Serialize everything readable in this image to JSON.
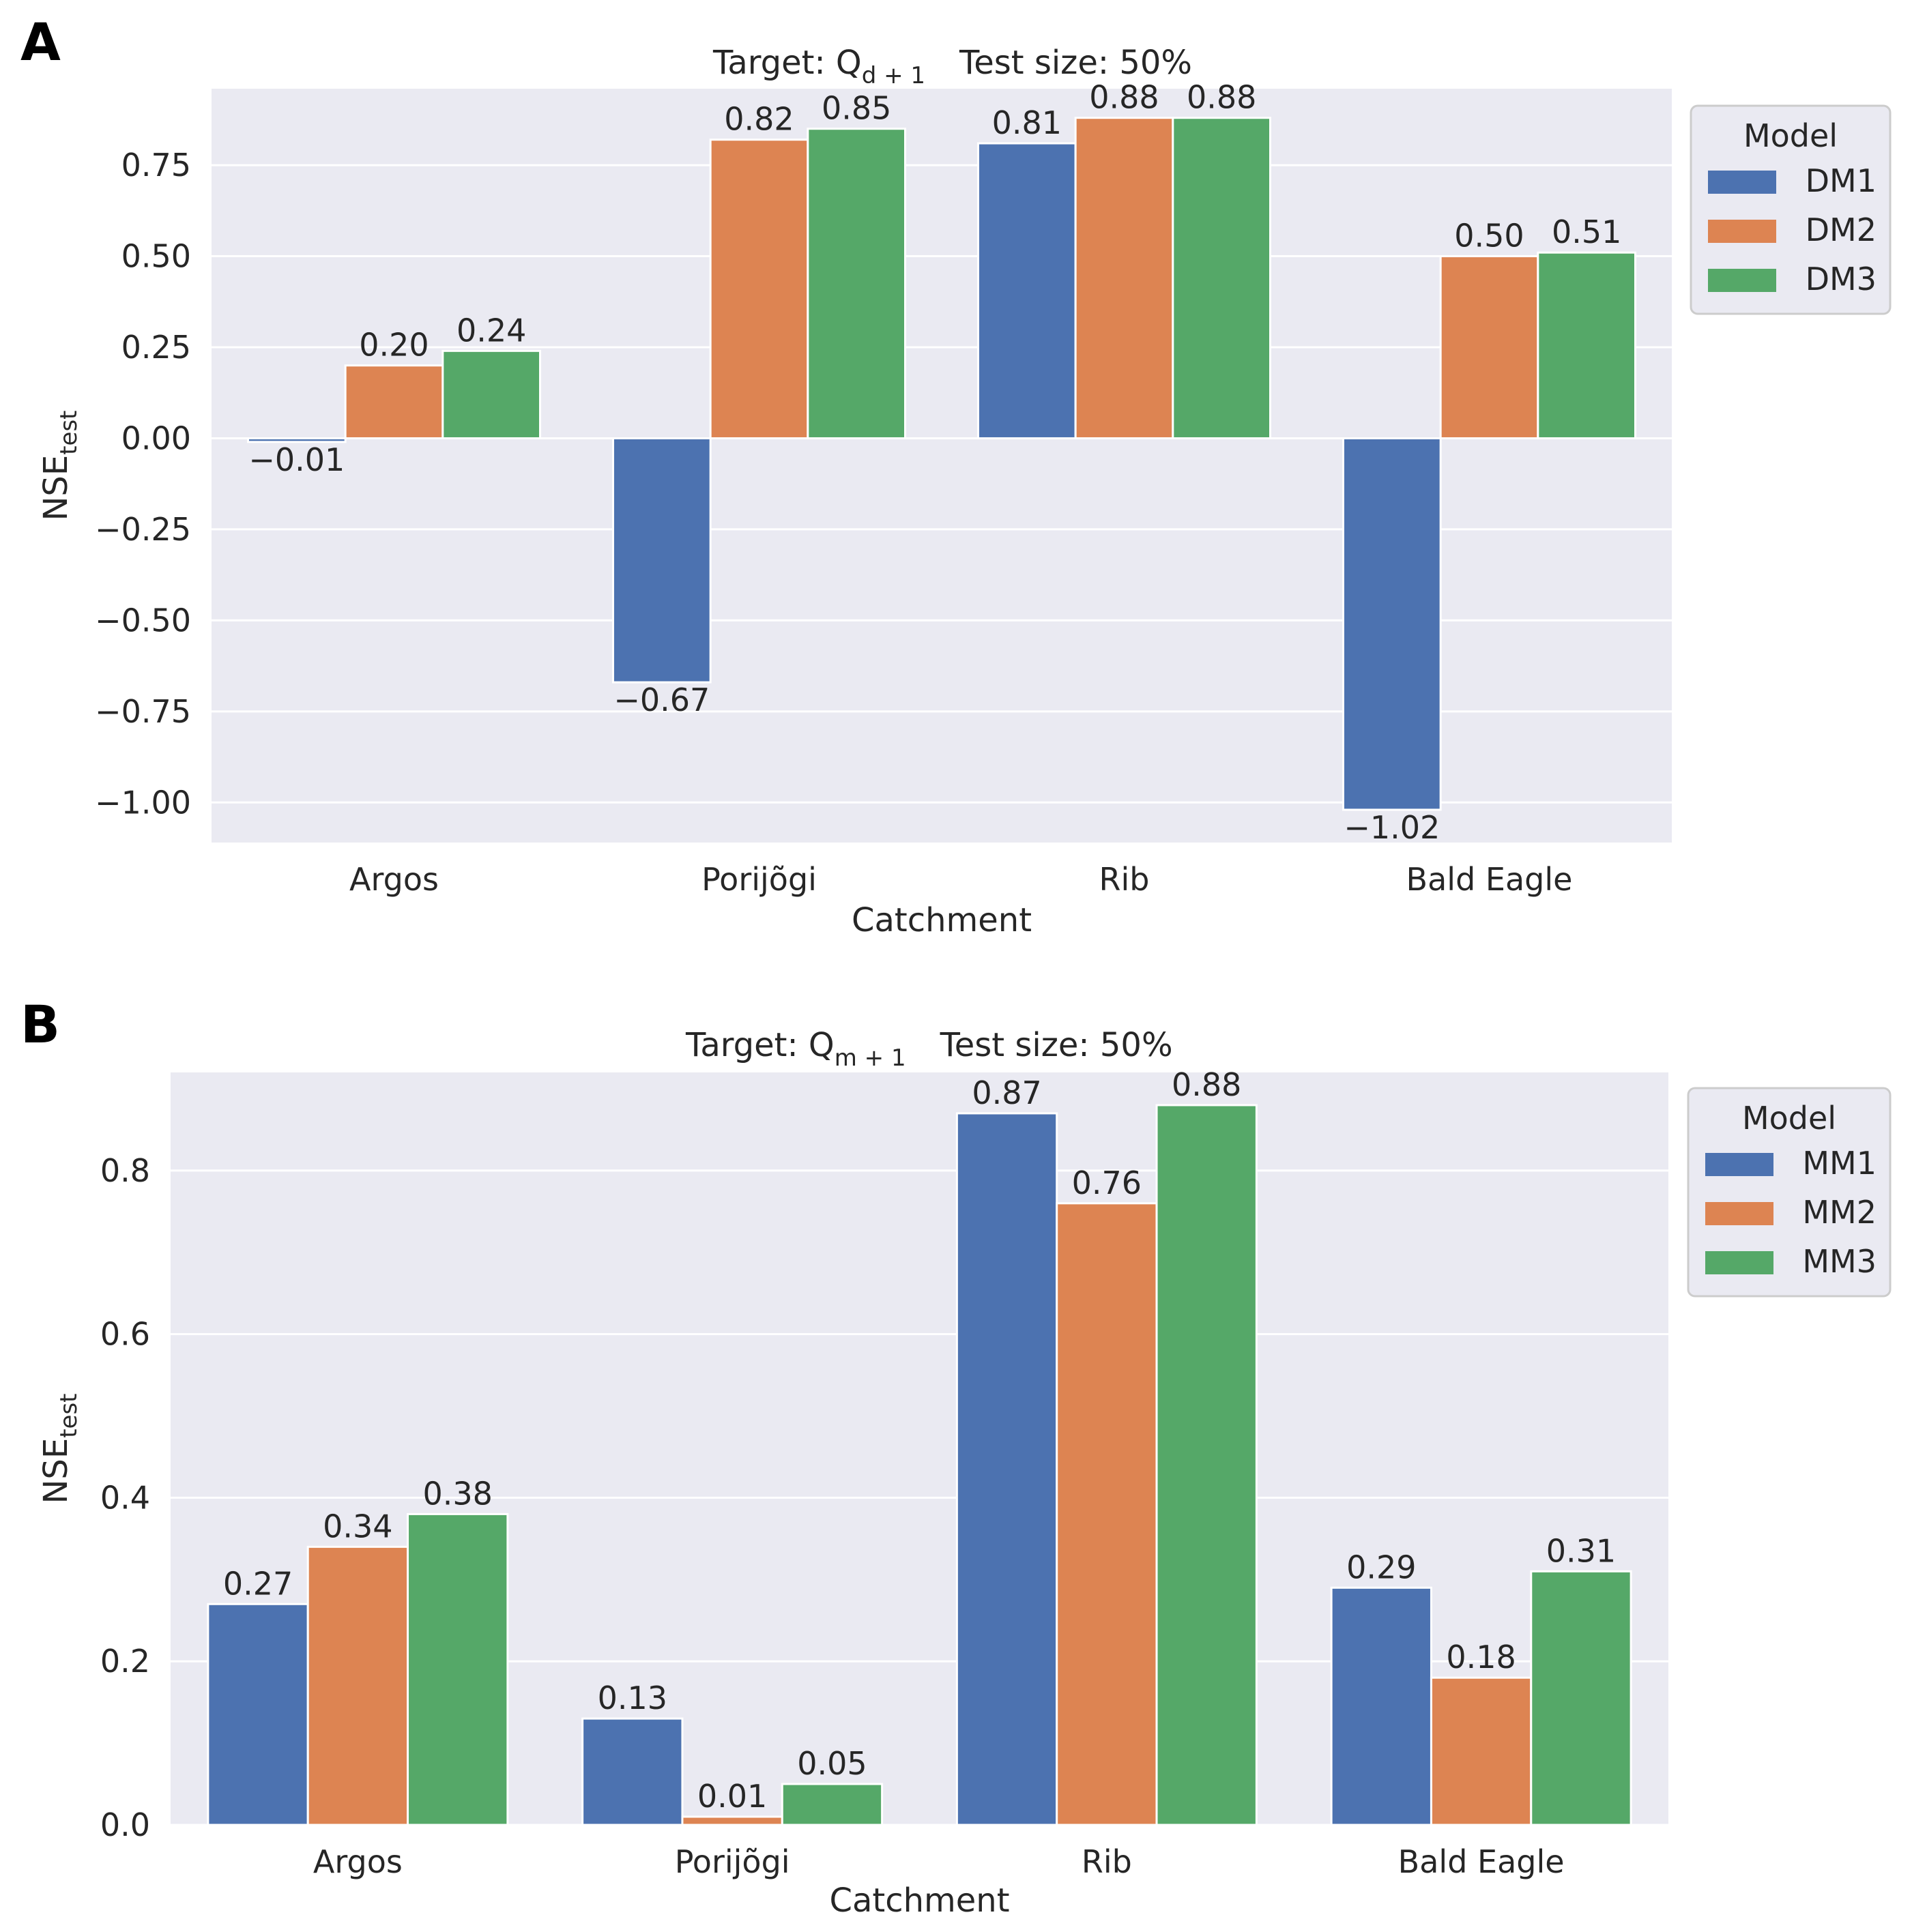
{
  "chart_data": [
    {
      "panel": "A",
      "type": "bar",
      "title": {
        "prefix": "Target: Q",
        "sub": "d + 1",
        "suffix": "Test size: 50%"
      },
      "xlabel": "Catchment",
      "ylabel": {
        "main": "NSE",
        "sub": "test"
      },
      "categories": [
        "Argos",
        "Porijõgi",
        "Rib",
        "Bald Eagle"
      ],
      "ylim": [
        -1.11,
        0.96
      ],
      "yticks": [
        -1.0,
        -0.75,
        -0.5,
        -0.25,
        0.0,
        0.25,
        0.5,
        0.75
      ],
      "ytick_labels": [
        "−1.00",
        "−0.75",
        "−0.50",
        "−0.25",
        "0.00",
        "0.25",
        "0.50",
        "0.75"
      ],
      "legend_title": "Model",
      "series": [
        {
          "name": "DM1",
          "color": "#4C72B0",
          "values": [
            -0.01,
            -0.67,
            0.81,
            -1.02
          ],
          "labels": [
            "−0.01",
            "−0.67",
            "0.81",
            "−1.02"
          ]
        },
        {
          "name": "DM2",
          "color": "#DD8452",
          "values": [
            0.2,
            0.82,
            0.88,
            0.5
          ],
          "labels": [
            "0.20",
            "0.82",
            "0.88",
            "0.50"
          ]
        },
        {
          "name": "DM3",
          "color": "#55A868",
          "values": [
            0.24,
            0.85,
            0.88,
            0.51
          ],
          "labels": [
            "0.24",
            "0.85",
            "0.88",
            "0.51"
          ]
        }
      ]
    },
    {
      "panel": "B",
      "type": "bar",
      "title": {
        "prefix": "Target: Q",
        "sub": "m + 1",
        "suffix": "Test size: 50%"
      },
      "xlabel": "Catchment",
      "ylabel": {
        "main": "NSE",
        "sub": "test"
      },
      "categories": [
        "Argos",
        "Porijõgi",
        "Rib",
        "Bald Eagle"
      ],
      "ylim": [
        0.0,
        0.92
      ],
      "yticks": [
        0.0,
        0.2,
        0.4,
        0.6,
        0.8
      ],
      "ytick_labels": [
        "0.0",
        "0.2",
        "0.4",
        "0.6",
        "0.8"
      ],
      "legend_title": "Model",
      "series": [
        {
          "name": "MM1",
          "color": "#4C72B0",
          "values": [
            0.27,
            0.13,
            0.87,
            0.29
          ],
          "labels": [
            "0.27",
            "0.13",
            "0.87",
            "0.29"
          ]
        },
        {
          "name": "MM2",
          "color": "#DD8452",
          "values": [
            0.34,
            0.01,
            0.76,
            0.18
          ],
          "labels": [
            "0.34",
            "0.01",
            "0.76",
            "0.18"
          ]
        },
        {
          "name": "MM3",
          "color": "#55A868",
          "values": [
            0.38,
            0.05,
            0.88,
            0.31
          ],
          "labels": [
            "0.38",
            "0.05",
            "0.88",
            "0.31"
          ]
        }
      ]
    }
  ]
}
